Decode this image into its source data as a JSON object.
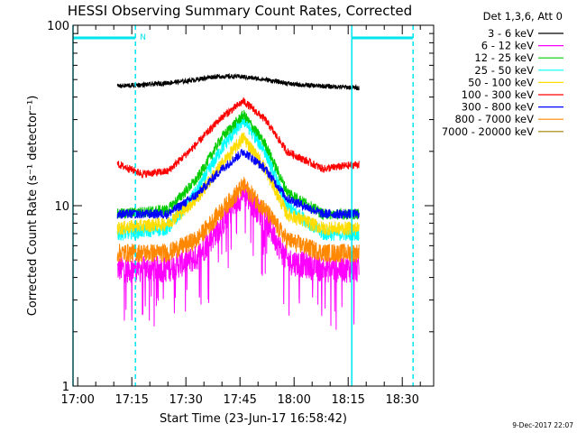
{
  "chart_data": {
    "type": "line",
    "title": "HESSI Observing Summary Count Rates, Corrected",
    "xlabel": "Start Time (23-Jun-17 16:58:42)",
    "ylabel": "Corrected Count Rate (s⁻¹ detector⁻¹)",
    "footer": "9-Dec-2017 22:07",
    "legend_title": "Det 1,3,6, Att 0",
    "legend_position": "top-right outside",
    "y_scale": "log",
    "ylim": [
      1,
      100
    ],
    "y_ticks": [
      {
        "value": 1,
        "label": "1"
      },
      {
        "value": 10,
        "label": "10"
      },
      {
        "value": 100,
        "label": "100"
      }
    ],
    "xlim": [
      "16:58:42",
      "18:38:42"
    ],
    "x_ticks": [
      {
        "value": "17:00",
        "label": "17:00"
      },
      {
        "value": "17:15",
        "label": "17:15"
      },
      {
        "value": "17:30",
        "label": "17:30"
      },
      {
        "value": "17:45",
        "label": "17:45"
      },
      {
        "value": "18:00",
        "label": "18:00"
      },
      {
        "value": "18:15",
        "label": "18:15"
      },
      {
        "value": "18:30",
        "label": "18:30"
      }
    ],
    "data_range": [
      "17:11",
      "18:18"
    ],
    "series": [
      {
        "name": "3 - 6 keV",
        "color": "#000000",
        "points": [
          [
            "17:11",
            46
          ],
          [
            "17:20",
            47
          ],
          [
            "17:30",
            49
          ],
          [
            "17:38",
            52
          ],
          [
            "17:45",
            52
          ],
          [
            "17:52",
            50
          ],
          [
            "18:00",
            47
          ],
          [
            "18:08",
            46
          ],
          [
            "18:18",
            45
          ]
        ]
      },
      {
        "name": "6 - 12 keV",
        "color": "#ff00ff",
        "points": [
          [
            "17:11",
            4.5
          ],
          [
            "17:25",
            4.5
          ],
          [
            "17:33",
            5.2
          ],
          [
            "17:40",
            8
          ],
          [
            "17:46",
            12
          ],
          [
            "17:52",
            8.5
          ],
          [
            "17:58",
            5
          ],
          [
            "18:08",
            4.5
          ],
          [
            "18:18",
            4.5
          ]
        ]
      },
      {
        "name": "12 - 25 keV",
        "color": "#00cc00",
        "points": [
          [
            "17:11",
            9
          ],
          [
            "17:25",
            9.5
          ],
          [
            "17:33",
            14
          ],
          [
            "17:40",
            24
          ],
          [
            "17:46",
            32
          ],
          [
            "17:52",
            22
          ],
          [
            "17:58",
            12
          ],
          [
            "18:08",
            9
          ],
          [
            "18:18",
            9
          ]
        ]
      },
      {
        "name": "25 - 50 keV",
        "color": "#00ffff",
        "points": [
          [
            "17:11",
            7
          ],
          [
            "17:25",
            7.5
          ],
          [
            "17:33",
            12
          ],
          [
            "17:40",
            21
          ],
          [
            "17:46",
            30
          ],
          [
            "17:52",
            20
          ],
          [
            "17:58",
            10
          ],
          [
            "18:08",
            7
          ],
          [
            "18:18",
            7
          ]
        ]
      },
      {
        "name": "50 - 100 keV",
        "color": "#ffdd00",
        "points": [
          [
            "17:11",
            7.5
          ],
          [
            "17:25",
            8
          ],
          [
            "17:33",
            11
          ],
          [
            "17:40",
            17
          ],
          [
            "17:46",
            24
          ],
          [
            "17:52",
            16
          ],
          [
            "17:58",
            9
          ],
          [
            "18:08",
            7.5
          ],
          [
            "18:18",
            7.5
          ]
        ]
      },
      {
        "name": "100 - 300 keV",
        "color": "#ff0000",
        "points": [
          [
            "17:11",
            17
          ],
          [
            "17:18",
            15
          ],
          [
            "17:25",
            15.5
          ],
          [
            "17:33",
            22
          ],
          [
            "17:40",
            31
          ],
          [
            "17:46",
            38
          ],
          [
            "17:52",
            30
          ],
          [
            "17:58",
            20
          ],
          [
            "18:08",
            16
          ],
          [
            "18:18",
            17
          ]
        ]
      },
      {
        "name": "300 - 800 keV",
        "color": "#0000ff",
        "points": [
          [
            "17:11",
            9
          ],
          [
            "17:25",
            9
          ],
          [
            "17:33",
            11.5
          ],
          [
            "17:40",
            16
          ],
          [
            "17:46",
            20
          ],
          [
            "17:52",
            16
          ],
          [
            "17:58",
            11
          ],
          [
            "18:08",
            9
          ],
          [
            "18:18",
            9
          ]
        ]
      },
      {
        "name": "800 - 7000 keV",
        "color": "#ff8800",
        "points": [
          [
            "17:11",
            5.5
          ],
          [
            "17:25",
            5.5
          ],
          [
            "17:33",
            6.5
          ],
          [
            "17:40",
            9.5
          ],
          [
            "17:46",
            13
          ],
          [
            "17:52",
            9.5
          ],
          [
            "17:58",
            6.5
          ],
          [
            "18:08",
            5.5
          ],
          [
            "18:18",
            5.5
          ]
        ]
      },
      {
        "name": "7000 - 20000 keV",
        "color": "#a08000",
        "points": []
      }
    ],
    "flags": {
      "bar_color": "#00e5ee",
      "n_label": "N",
      "vlines": [
        {
          "time": "16:58:42",
          "style": "solid"
        },
        {
          "time": "17:16",
          "style": "dashed"
        },
        {
          "time": "18:16",
          "style": "solid"
        },
        {
          "time": "18:33",
          "style": "dashed"
        }
      ],
      "bars": [
        {
          "start": "16:58:42",
          "end": "17:16"
        },
        {
          "start": "18:16",
          "end": "18:33"
        }
      ]
    }
  }
}
